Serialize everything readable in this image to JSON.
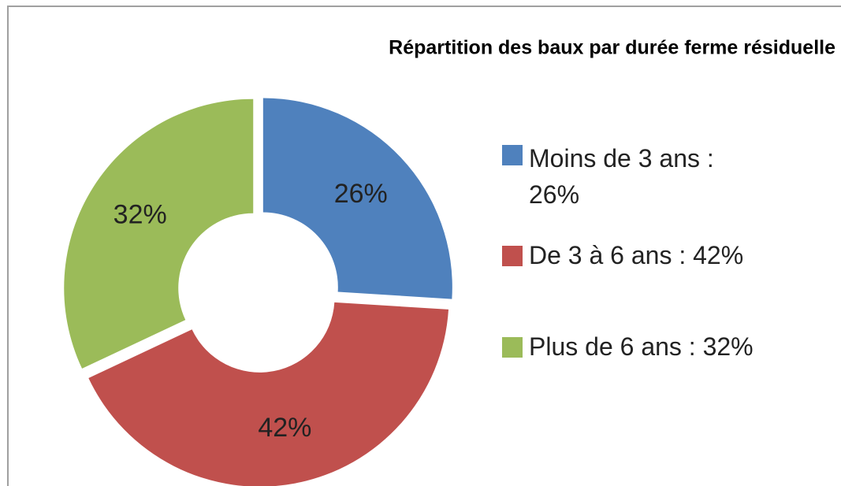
{
  "chart_data": {
    "type": "pie",
    "title": "Répartition des baux par durée ferme résiduelle",
    "categories": [
      "Moins de 3 ans : 26%",
      "De 3 à 6 ans : 42%",
      "Plus de 6 ans : 32%"
    ],
    "values": [
      26,
      42,
      32
    ],
    "value_labels": [
      "26%",
      "42%",
      "32%"
    ],
    "colors": [
      "#4f81bd",
      "#c0504d",
      "#9bbb59"
    ],
    "donut": true,
    "legend": "right"
  }
}
